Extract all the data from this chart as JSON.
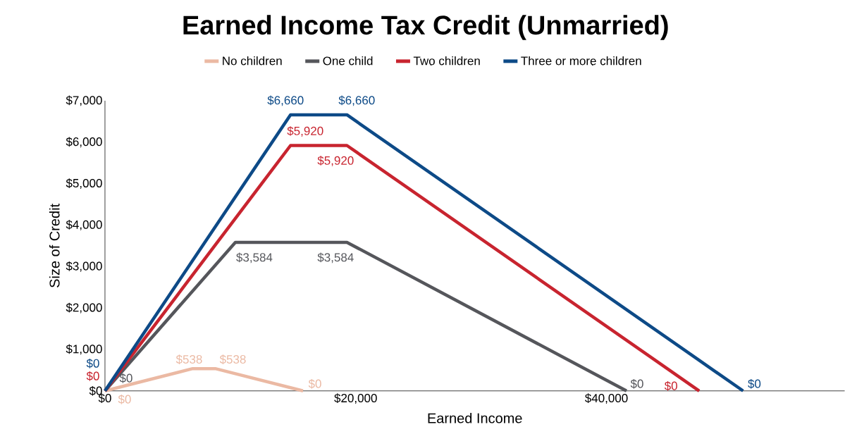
{
  "chart_data": {
    "type": "line",
    "title": "Earned Income Tax Credit (Unmarried)",
    "xlabel": "Earned Income",
    "ylabel": "Size of Credit",
    "xlim": [
      0,
      59000
    ],
    "xticks": [
      {
        "value": 0,
        "label": "$0"
      },
      {
        "value": 20000,
        "label": "$20,000"
      },
      {
        "value": 40000,
        "label": "$40,000"
      }
    ],
    "ylim": [
      0,
      7000
    ],
    "yticks": [
      {
        "value": 0,
        "label": "$0"
      },
      {
        "value": 1000,
        "label": "$1,000"
      },
      {
        "value": 2000,
        "label": "$2,000"
      },
      {
        "value": 3000,
        "label": "$3,000"
      },
      {
        "value": 4000,
        "label": "$4,000"
      },
      {
        "value": 5000,
        "label": "$5,000"
      },
      {
        "value": 6000,
        "label": "$6,000"
      },
      {
        "value": 7000,
        "label": "$7,000"
      }
    ],
    "grid": false,
    "legend": "top",
    "marker": "none",
    "line_style": "solid",
    "series": [
      {
        "name": "No children",
        "color": "#ebb9a3",
        "x": [
          0,
          7000,
          8800,
          15800
        ],
        "values": [
          0,
          538,
          538,
          0
        ],
        "value_labels": [
          "$0",
          "$538",
          "$538",
          "$0"
        ]
      },
      {
        "name": "One child",
        "color": "#55565b",
        "x": [
          0,
          10400,
          19300,
          41600
        ],
        "values": [
          0,
          3584,
          3584,
          0
        ],
        "value_labels": [
          "$0",
          "$3,584",
          "$3,584",
          "$0"
        ]
      },
      {
        "name": "Two children",
        "color": "#c8242f",
        "x": [
          0,
          14800,
          19300,
          47400
        ],
        "values": [
          0,
          5920,
          5920,
          0
        ],
        "value_labels": [
          "$0",
          "$5,920",
          "$5,920",
          "$0"
        ]
      },
      {
        "name": "Three or more children",
        "color": "#0d4a87",
        "x": [
          0,
          14800,
          19300,
          50900
        ],
        "values": [
          0,
          6660,
          6660,
          0
        ],
        "value_labels": [
          "$0",
          "$6,660",
          "$6,660",
          "$0"
        ]
      }
    ]
  }
}
